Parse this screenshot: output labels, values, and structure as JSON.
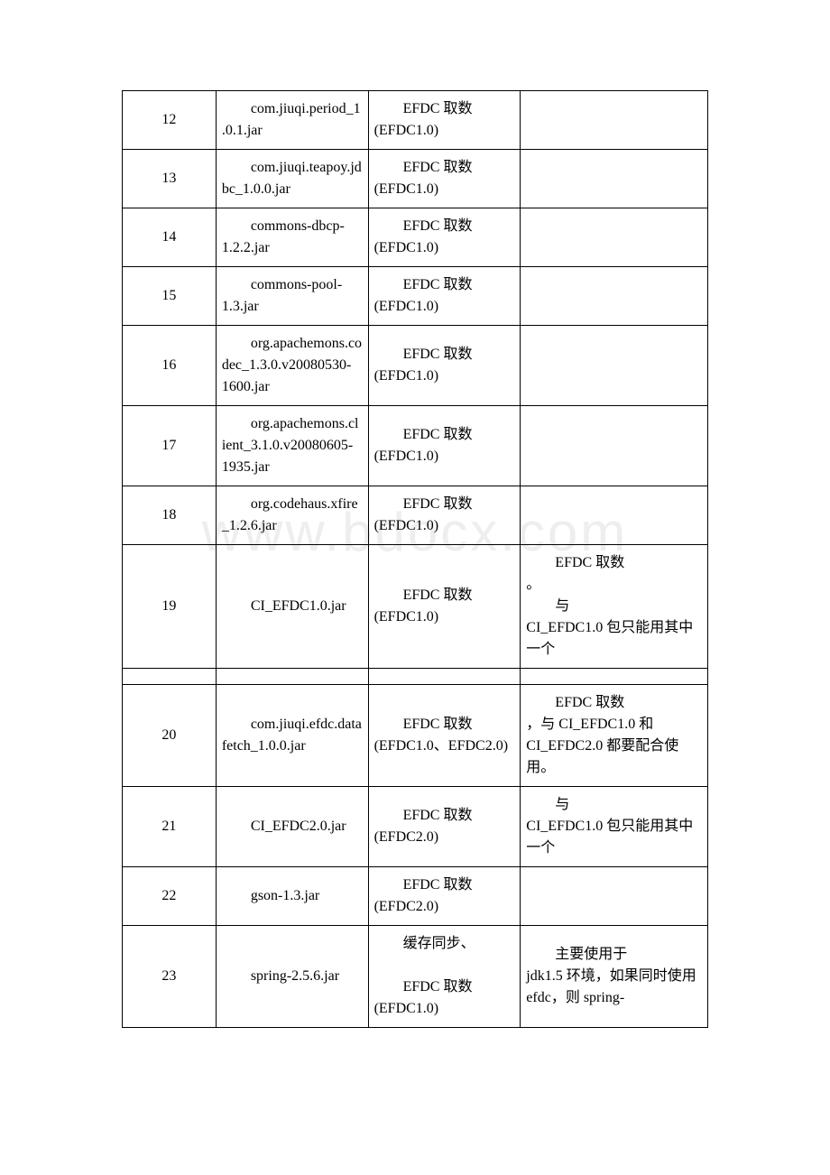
{
  "watermark_text": "www.bdocx.com",
  "table": {
    "rows": [
      {
        "num": "12",
        "file": "com.jiuqi.period_1.0.1.jar",
        "type": "EFDC 取数 (EFDC1.0)",
        "note": ""
      },
      {
        "num": "13",
        "file": "com.jiuqi.teapoy.jdbc_1.0.0.jar",
        "type": "EFDC 取数 (EFDC1.0)",
        "note": ""
      },
      {
        "num": "14",
        "file": "commons-dbcp-1.2.2.jar",
        "type": "EFDC 取数 (EFDC1.0)",
        "note": ""
      },
      {
        "num": "15",
        "file": "commons-pool-1.3.jar",
        "type": "EFDC 取数 (EFDC1.0)",
        "note": ""
      },
      {
        "num": "16",
        "file": "org.apachemons.codec_1.3.0.v20080530-1600.jar",
        "type": "EFDC 取数 (EFDC1.0)",
        "note": ""
      },
      {
        "num": "17",
        "file": "org.apachemons.client_3.1.0.v20080605-1935.jar",
        "type": "EFDC 取数 (EFDC1.0)",
        "note": ""
      },
      {
        "num": "18",
        "file": "org.codehaus.xfire_1.2.6.jar",
        "type": "EFDC 取数 (EFDC1.0)",
        "note": ""
      },
      {
        "num": "19",
        "file": "CI_EFDC1.0.jar",
        "type": "EFDC 取数 (EFDC1.0)",
        "note": "EFDC 取数 。\n与 CI_EFDC1.0 包只能用其中一个"
      },
      {
        "empty": true
      },
      {
        "num": "20",
        "file": "com.jiuqi.efdc.datafetch_1.0.0.jar",
        "type": "EFDC 取数 (EFDC1.0、EFDC2.0)",
        "note": "EFDC 取数 ，与 CI_EFDC1.0 和 CI_EFDC2.0 都要配合使用。"
      },
      {
        "num": "21",
        "file": "CI_EFDC2.0.jar",
        "type": "EFDC 取数 (EFDC2.0)",
        "note": "与 CI_EFDC1.0 包只能用其中一个"
      },
      {
        "num": "22",
        "file": "gson-1.3.jar",
        "type": "EFDC 取数 (EFDC2.0)",
        "note": ""
      },
      {
        "num": "23",
        "file": "spring-2.5.6.jar",
        "type": "缓存同步、\nEFDC 取数 (EFDC1.0)",
        "note": "主要使用于 jdk1.5 环境，如果同时使用 efdc，则 spring-"
      }
    ]
  }
}
